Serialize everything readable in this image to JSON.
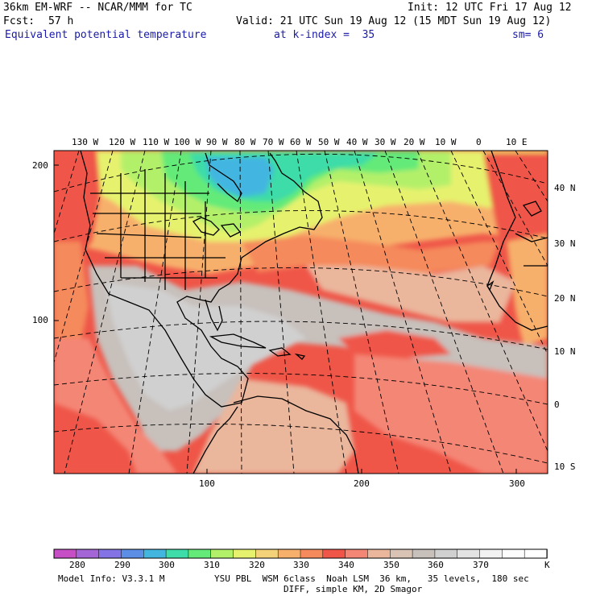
{
  "header": {
    "model": "36km EM-WRF -- NCAR/MMM for TC",
    "init": "Init: 12 UTC Fri 17 Aug 12",
    "fcst_label": "Fcst:",
    "fcst_value": "57 h",
    "valid": "Valid: 21 UTC Sun 19 Aug 12 (15 MDT Sun 19 Aug 12)",
    "field": "Equivalent potential temperature",
    "kindex": "at k-index =  35",
    "sm": "sm= 6"
  },
  "map": {
    "top_lon_labels": [
      "130 W",
      "120 W",
      "110 W",
      "100 W",
      "90 W",
      "80 W",
      "70 W",
      "60 W",
      "50 W",
      "40 W",
      "30 W",
      "20 W",
      "10 W",
      "0",
      "10 E"
    ],
    "right_lat_labels": [
      "40 N",
      "30 N",
      "20 N",
      "10 N",
      "0",
      "10 S"
    ],
    "left_grid_labels": [
      "200",
      "100"
    ],
    "bottom_grid_labels": [
      "100",
      "200",
      "300"
    ]
  },
  "colorbar": {
    "labels": [
      "280",
      "290",
      "300",
      "310",
      "320",
      "330",
      "340",
      "350",
      "360",
      "370"
    ],
    "unit": "K",
    "colors": [
      "#c64fc6",
      "#a466d6",
      "#8473e4",
      "#5c8ee6",
      "#43b6e0",
      "#3edca8",
      "#63ea78",
      "#b3f06a",
      "#e6f26e",
      "#f4d27a",
      "#f7b06c",
      "#f58a5c",
      "#ef5648",
      "#f48676",
      "#eab69c",
      "#d9c3b4",
      "#c7c0bb",
      "#d0d0d0",
      "#e3e3e3",
      "#f2f2f2",
      "#fcfcfc",
      "#ffffff"
    ]
  },
  "footer": {
    "line1a": "Model Info: V3.3.1 M",
    "line1b": "YSU PBL  WSM 6class  Noah LSM  36 km,   35 levels,  180 sec",
    "line2": "DIFF, simple KM, 2D Smagor"
  }
}
